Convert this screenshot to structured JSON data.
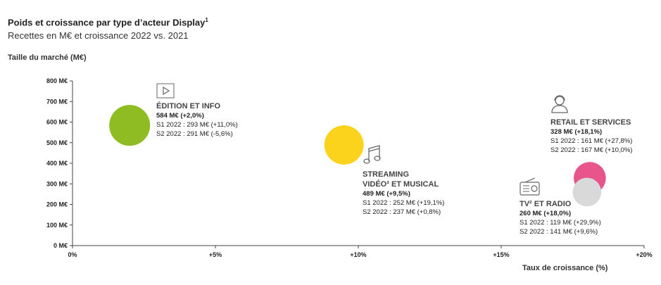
{
  "chart_data": {
    "type": "scatter",
    "title": "Poids et croissance par type d’acteur Display",
    "title_sup": "1",
    "subtitle": "Recettes en M€ et croissance 2022 vs. 2021",
    "ylabel": "Taille du marché (M€)",
    "xlabel": "Taux de croissance (%)",
    "xlim": [
      0,
      20
    ],
    "ylim": [
      0,
      800
    ],
    "x_ticks": [
      {
        "value": 0,
        "label": "0%"
      },
      {
        "value": 5,
        "label": "+5%"
      },
      {
        "value": 10,
        "label": "+10%"
      },
      {
        "value": 15,
        "label": "+15%"
      },
      {
        "value": 20,
        "label": "+20%"
      }
    ],
    "y_ticks": [
      {
        "value": 0,
        "label": "0 M€"
      },
      {
        "value": 100,
        "label": "100 M€"
      },
      {
        "value": 200,
        "label": "200 M€"
      },
      {
        "value": 300,
        "label": "300 M€"
      },
      {
        "value": 400,
        "label": "400 M€"
      },
      {
        "value": 500,
        "label": "500 M€"
      },
      {
        "value": 600,
        "label": "600 M€"
      },
      {
        "value": 700,
        "label": "700 M€"
      },
      {
        "value": 800,
        "label": "800 M€"
      }
    ],
    "grid": false,
    "series": [
      {
        "name": "ÉDITION ET INFO",
        "x": 2.0,
        "y": 584,
        "color": "#8fbc22",
        "total": "584 M€ (+2,0%)",
        "s1": "S1 2022 : 293 M€ (+11,0%)",
        "s2": "S2 2022 : 291 M€ (-5,6%)",
        "icon": "video-play-icon"
      },
      {
        "name": "STREAMING VIDÉO² ET MUSICAL",
        "name_line1": "STREAMING",
        "name_line2": "VIDÉO² ET MUSICAL",
        "x": 9.5,
        "y": 489,
        "color": "#fbd21c",
        "total": "489 M€ (+9,5%)",
        "s1": "S1 2022 : 252 M€ (+19,1%)",
        "s2": "S2 2022 : 237 M€ (+0,8%)",
        "icon": "music-note-icon"
      },
      {
        "name": "RETAIL ET SERVICES",
        "x": 18.1,
        "y": 328,
        "color": "#e8558a",
        "total": "328 M€ (+18,1%)",
        "s1": "S1 2022 : 161 M€ (+27,8%)",
        "s2": "S2 2022 : 167 M€ (+10,0%)",
        "icon": "customer-service-icon"
      },
      {
        "name": "TV² ET RADIO",
        "x": 18.0,
        "y": 260,
        "color": "#d9d9d9",
        "total": "260 M€ (+18,0%)",
        "s1": "S1 2022 : 119 M€ (+29,9%)",
        "s2": "S2 2022 : 141 M€ (+9,6%)",
        "icon": "radio-icon"
      }
    ]
  }
}
